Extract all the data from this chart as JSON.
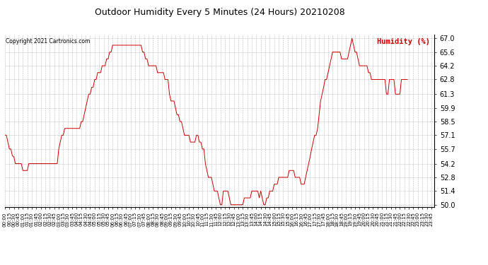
{
  "title": "Outdoor Humidity Every 5 Minutes (24 Hours) 20210208",
  "copyright": "Copyright 2021 Cartronics.com",
  "legend_label": "Humidity (%)",
  "line_color": "#cc0000",
  "legend_color": "#cc0000",
  "background_color": "#ffffff",
  "grid_color": "#aaaaaa",
  "title_color": "#000000",
  "copyright_color": "#000000",
  "ylim": [
    49.8,
    67.4
  ],
  "yticks": [
    50.0,
    51.4,
    52.8,
    54.2,
    55.7,
    57.1,
    58.5,
    59.9,
    61.3,
    62.8,
    64.2,
    65.6,
    67.0
  ],
  "humidity_values": [
    57.1,
    57.1,
    56.4,
    55.7,
    55.7,
    55.0,
    54.9,
    54.2,
    54.2,
    54.2,
    54.2,
    54.2,
    53.5,
    53.5,
    53.5,
    53.5,
    54.2,
    54.2,
    54.2,
    54.2,
    54.2,
    54.2,
    54.2,
    54.2,
    54.2,
    54.2,
    54.2,
    54.2,
    54.2,
    54.2,
    54.2,
    54.2,
    54.2,
    54.2,
    54.2,
    54.2,
    55.7,
    56.4,
    57.1,
    57.1,
    57.8,
    57.8,
    57.8,
    57.8,
    57.8,
    57.8,
    57.8,
    57.8,
    57.8,
    57.8,
    57.8,
    58.5,
    58.5,
    59.2,
    59.9,
    60.6,
    61.3,
    61.3,
    62.0,
    62.0,
    62.8,
    62.8,
    63.5,
    63.5,
    63.5,
    64.2,
    64.2,
    64.2,
    64.9,
    64.9,
    65.6,
    65.6,
    66.3,
    66.3,
    66.3,
    66.3,
    66.3,
    66.3,
    66.3,
    66.3,
    66.3,
    66.3,
    66.3,
    66.3,
    66.3,
    66.3,
    66.3,
    66.3,
    66.3,
    66.3,
    66.3,
    66.3,
    65.6,
    65.6,
    64.9,
    64.9,
    64.2,
    64.2,
    64.2,
    64.2,
    64.2,
    64.2,
    63.5,
    63.5,
    63.5,
    63.5,
    63.5,
    62.8,
    62.8,
    62.8,
    61.3,
    60.6,
    60.6,
    60.6,
    59.9,
    59.2,
    59.2,
    58.5,
    58.5,
    57.8,
    57.1,
    57.1,
    57.1,
    57.1,
    56.4,
    56.4,
    56.4,
    56.4,
    57.1,
    57.1,
    56.4,
    56.4,
    55.7,
    55.7,
    54.2,
    53.5,
    52.8,
    52.8,
    52.8,
    52.1,
    51.4,
    51.4,
    51.4,
    50.7,
    50.0,
    50.0,
    51.4,
    51.4,
    51.4,
    51.4,
    50.7,
    50.0,
    50.0,
    50.0,
    50.0,
    50.0,
    50.0,
    50.0,
    50.0,
    50.0,
    50.7,
    50.7,
    50.7,
    50.7,
    50.7,
    51.4,
    51.4,
    51.4,
    51.4,
    51.4,
    50.7,
    51.4,
    50.7,
    50.0,
    50.0,
    50.7,
    50.7,
    51.4,
    51.4,
    51.4,
    52.1,
    52.1,
    52.1,
    52.8,
    52.8,
    52.8,
    52.8,
    52.8,
    52.8,
    52.8,
    53.5,
    53.5,
    53.5,
    53.5,
    52.8,
    52.8,
    52.8,
    52.8,
    52.1,
    52.1,
    52.1,
    52.8,
    53.5,
    54.2,
    54.9,
    55.7,
    56.4,
    57.1,
    57.1,
    57.8,
    59.2,
    60.6,
    61.3,
    62.0,
    62.8,
    62.8,
    63.5,
    64.2,
    64.9,
    65.6,
    65.6,
    65.6,
    65.6,
    65.6,
    65.6,
    64.9,
    64.9,
    64.9,
    64.9,
    64.9,
    65.6,
    66.3,
    67.0,
    66.3,
    65.6,
    65.6,
    64.9,
    64.2,
    64.2,
    64.2,
    64.2,
    64.2,
    64.2,
    63.5,
    63.5,
    62.8,
    62.8,
    62.8,
    62.8,
    62.8,
    62.8,
    62.8,
    62.8,
    62.8,
    62.8,
    61.3,
    61.3,
    62.8,
    62.8,
    62.8,
    62.8,
    61.3,
    61.3,
    61.3,
    61.3,
    62.8,
    62.8,
    62.8,
    62.8,
    62.8
  ]
}
